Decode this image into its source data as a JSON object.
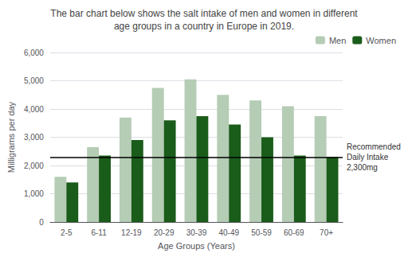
{
  "chart_data": {
    "type": "bar",
    "title": "The bar chart below shows the salt intake of men and women in different\nage groups in a country in Europe in 2019.",
    "categories": [
      "2-5",
      "6-11",
      "12-19",
      "20-29",
      "30-39",
      "40-49",
      "50-59",
      "60-69",
      "70+"
    ],
    "series": [
      {
        "name": "Men",
        "color": "#b5ccb5",
        "values": [
          1600,
          2650,
          3700,
          4750,
          5050,
          4500,
          4300,
          4100,
          3750
        ]
      },
      {
        "name": "Women",
        "color": "#1a5c1a",
        "values": [
          1400,
          2350,
          2900,
          3600,
          3750,
          3450,
          3000,
          2350,
          2300
        ]
      }
    ],
    "xlabel": "Age Groups (Years)",
    "ylabel": "Milligrams per day",
    "ylim": [
      0,
      6000
    ],
    "yticks": [
      0,
      1000,
      2000,
      3000,
      4000,
      5000,
      6000
    ],
    "grid": true,
    "legend": "upper right",
    "annotations": [
      {
        "type": "hline",
        "y": 2300,
        "color": "#000000",
        "label": "Recommended\nDaily Intake\n2,300mg"
      }
    ]
  }
}
